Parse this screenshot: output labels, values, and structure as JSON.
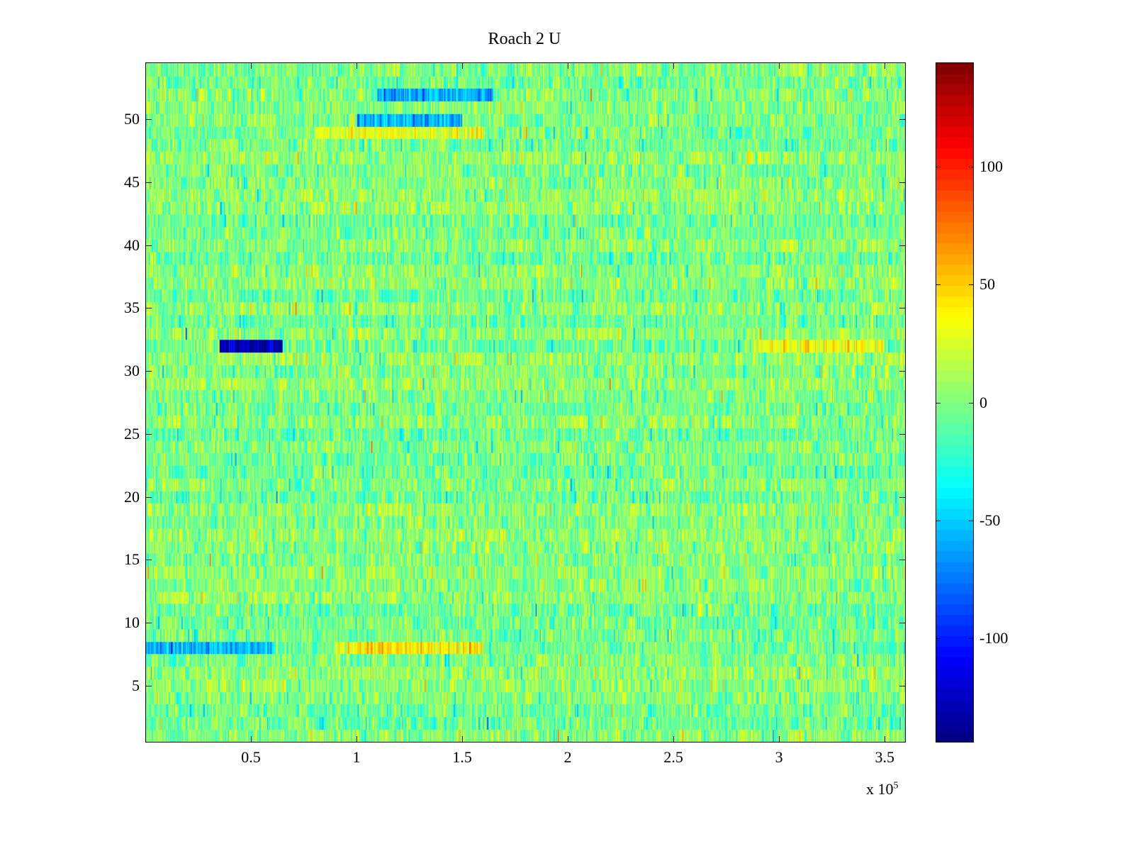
{
  "chart_data": {
    "type": "heatmap",
    "title": "Roach 2 U",
    "xlabel": "",
    "ylabel": "",
    "x_exponent_label": "x 10",
    "x_exponent": "5",
    "xlim": [
      0,
      360000
    ],
    "ylim": [
      0.5,
      54.5
    ],
    "rows": 54,
    "x_ticks": [
      50000,
      100000,
      150000,
      200000,
      250000,
      300000,
      350000
    ],
    "x_tick_labels": [
      "0.5",
      "1",
      "1.5",
      "2",
      "2.5",
      "3",
      "3.5"
    ],
    "y_ticks": [
      5,
      10,
      15,
      20,
      25,
      30,
      35,
      40,
      45,
      50
    ],
    "y_tick_labels": [
      "5",
      "10",
      "15",
      "20",
      "25",
      "30",
      "35",
      "40",
      "45",
      "50"
    ],
    "colormap": "jet",
    "clim": [
      -144,
      144
    ],
    "colorbar_ticks": [
      -100,
      -50,
      0,
      50,
      100
    ],
    "colorbar_tick_labels": [
      "-100",
      "-50",
      "0",
      "50",
      "100"
    ],
    "typical_value_range": [
      -40,
      40
    ],
    "features": [
      {
        "row": 32,
        "x_range": [
          35000,
          65000
        ],
        "value": -130
      },
      {
        "row": 32,
        "x_range": [
          290000,
          350000
        ],
        "value": 35
      },
      {
        "row": 52,
        "x_range": [
          110000,
          165000
        ],
        "value": -60
      },
      {
        "row": 50,
        "x_range": [
          100000,
          150000
        ],
        "value": -55
      },
      {
        "row": 8,
        "x_range": [
          0,
          60000
        ],
        "value": -55
      },
      {
        "row": 8,
        "x_range": [
          90000,
          160000
        ],
        "value": 40
      },
      {
        "row": 49,
        "x_range": [
          80000,
          160000
        ],
        "value": 30
      }
    ]
  }
}
